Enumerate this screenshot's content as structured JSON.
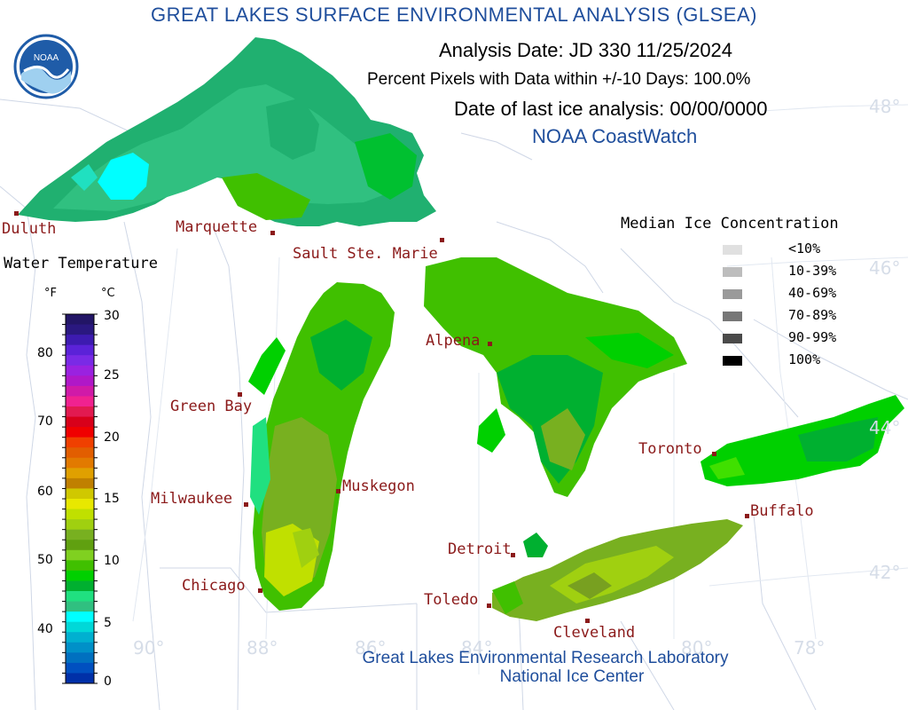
{
  "header": {
    "title": "GREAT LAKES SURFACE ENVIRONMENTAL ANALYSIS (GLSEA)",
    "analysis_date": "Analysis Date:  JD 330 11/25/2024",
    "percent_pixels": "Percent Pixels with Data within +/-10 Days: 100.0%",
    "ice_analysis_date": "Date of last ice analysis: 00/00/0000",
    "source": "NOAA CoastWatch"
  },
  "logo": {
    "text": "NOAA",
    "colors": {
      "blue": "#1f5ca8",
      "light": "#9fd0f0"
    }
  },
  "footer": {
    "line1": "Great Lakes Environmental Research Laboratory",
    "line2": "National Ice Center"
  },
  "water_legend": {
    "title": "Water Temperature",
    "unit_f": "°F",
    "unit_c": "°C",
    "f_ticks": [
      "80",
      "70",
      "60",
      "50",
      "40"
    ],
    "c_ticks": [
      "30",
      "25",
      "20",
      "15",
      "10",
      "5",
      "0"
    ],
    "colors": [
      "#221566",
      "#2a1880",
      "#3d1bb0",
      "#5b22d8",
      "#7a2ae6",
      "#9a22e0",
      "#b018c8",
      "#d01aa8",
      "#f02290",
      "#e21a50",
      "#d8001a",
      "#f00000",
      "#f04000",
      "#e25e00",
      "#e27a00",
      "#e0a000",
      "#c08000",
      "#d0c800",
      "#e8e800",
      "#c0e000",
      "#a0d010",
      "#78b020",
      "#60a010",
      "#80d020",
      "#40c000",
      "#00d000",
      "#00b030",
      "#20e080",
      "#30c080",
      "#00ffff",
      "#00d8d8",
      "#00b0d0",
      "#0090c8",
      "#0070c0",
      "#0050c0",
      "#0030a8"
    ]
  },
  "ice_legend": {
    "title": "Median Ice Concentration",
    "items": [
      {
        "label": "<10%",
        "color": "#e0e0e0"
      },
      {
        "label": "10-39%",
        "color": "#bdbdbd"
      },
      {
        "label": "40-69%",
        "color": "#9a9a9a"
      },
      {
        "label": "70-89%",
        "color": "#777777"
      },
      {
        "label": "90-99%",
        "color": "#4a4a4a"
      },
      {
        "label": "100%",
        "color": "#000000"
      }
    ]
  },
  "cities": [
    {
      "name": "Duluth"
    },
    {
      "name": "Marquette"
    },
    {
      "name": "Sault Ste. Marie"
    },
    {
      "name": "Green Bay"
    },
    {
      "name": "Alpena"
    },
    {
      "name": "Milwaukee"
    },
    {
      "name": "Muskegon"
    },
    {
      "name": "Chicago"
    },
    {
      "name": "Detroit"
    },
    {
      "name": "Toledo"
    },
    {
      "name": "Cleveland"
    },
    {
      "name": "Toronto"
    },
    {
      "name": "Buffalo"
    }
  ],
  "gridlines": {
    "lat_labels": [
      "48°",
      "46°",
      "44°",
      "42°"
    ],
    "lon_labels": [
      "90°",
      "88°",
      "86°",
      "84°",
      "80°",
      "78°"
    ]
  },
  "map_colors": {
    "superior_base": "#20b070",
    "superior_mid": "#30c080",
    "superior_cold": "#00ffff",
    "green_a": "#00d000",
    "green_b": "#40c000",
    "green_dark": "#00b030",
    "olive": "#78b020",
    "lime": "#a0d010",
    "yellow_green": "#c0e000",
    "cyan_green": "#20e080"
  }
}
